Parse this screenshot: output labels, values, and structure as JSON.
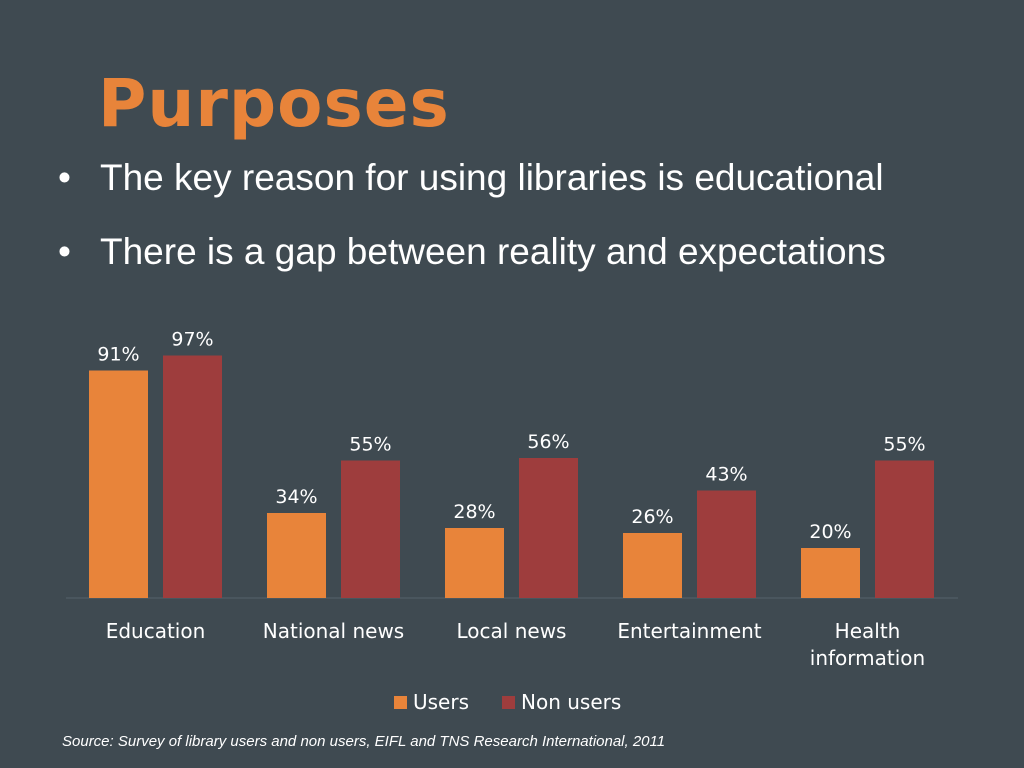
{
  "slide": {
    "title": "Purposes",
    "bullets": [
      "The key reason for using libraries is educational",
      "There is a gap between reality and expectations"
    ],
    "source": "Source: Survey of library users and non users, EIFL and TNS Research International, 2011"
  },
  "colors": {
    "background": "#3f4a51",
    "title": "#e8843a",
    "users": "#e8843a",
    "non_users": "#9e3d3d"
  },
  "chart_data": {
    "type": "bar",
    "categories": [
      "Education",
      "National news",
      "Local news",
      "Entertainment",
      "Health information"
    ],
    "series": [
      {
        "name": "Users",
        "values": [
          91,
          34,
          28,
          26,
          20
        ],
        "labels": [
          "91%",
          "34%",
          "28%",
          "26%",
          "20%"
        ]
      },
      {
        "name": "Non users",
        "values": [
          97,
          55,
          56,
          43,
          55
        ],
        "labels": [
          "97%",
          "55%",
          "56%",
          "43%",
          "55%"
        ]
      }
    ],
    "unit": "%",
    "ylim": [
      0,
      100
    ],
    "grid": false,
    "legend": "bottom"
  }
}
